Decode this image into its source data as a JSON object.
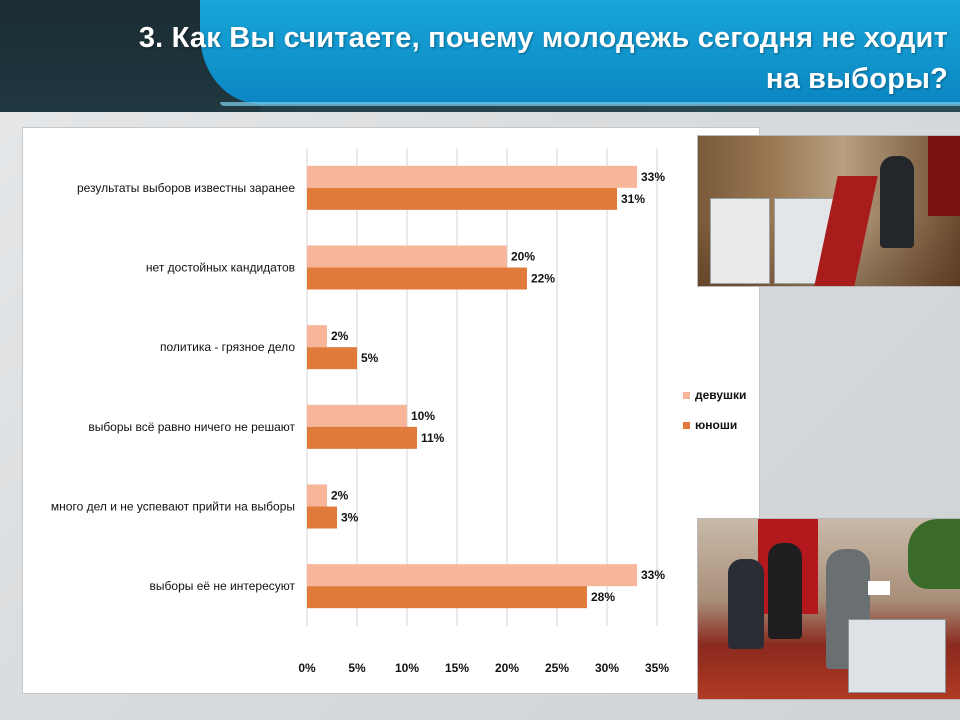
{
  "slide": {
    "title_line1": "3. Как Вы считаете, почему молодежь сегодня не ходит",
    "title_line2": "на выборы?"
  },
  "colors": {
    "header_blue": "#0a86c2",
    "header_dark": "#1e3a44",
    "series_girls": "#f7b599",
    "series_boys": "#e07b3c"
  },
  "chart_data": {
    "type": "bar",
    "orientation": "horizontal",
    "categories": [
      "результаты выборов известны заранее",
      "нет достойных кандидатов",
      "политика - грязное дело",
      "выборы всё равно ничего не решают",
      "много дел и не успевают прийти на выборы",
      "выборы её не интересуют"
    ],
    "series": [
      {
        "name": "девушки",
        "values": [
          33,
          20,
          2,
          10,
          2,
          33
        ],
        "labels": [
          "33%",
          "20%",
          "2%",
          "10%",
          "2%",
          "33%"
        ]
      },
      {
        "name": "юноши",
        "values": [
          31,
          22,
          5,
          11,
          3,
          28
        ],
        "labels": [
          "31%",
          "22%",
          "5%",
          "11%",
          "3%",
          "28%"
        ]
      }
    ],
    "xlim": [
      0,
      35
    ],
    "xticks": [
      0,
      5,
      10,
      15,
      20,
      25,
      30,
      35
    ],
    "xtick_labels": [
      "0%",
      "5%",
      "10%",
      "15%",
      "20%",
      "25%",
      "30%",
      "35%"
    ],
    "grid": true,
    "legend": "right"
  },
  "photos": {
    "top": "polling station photo",
    "bottom": "voting ballot box photo"
  }
}
